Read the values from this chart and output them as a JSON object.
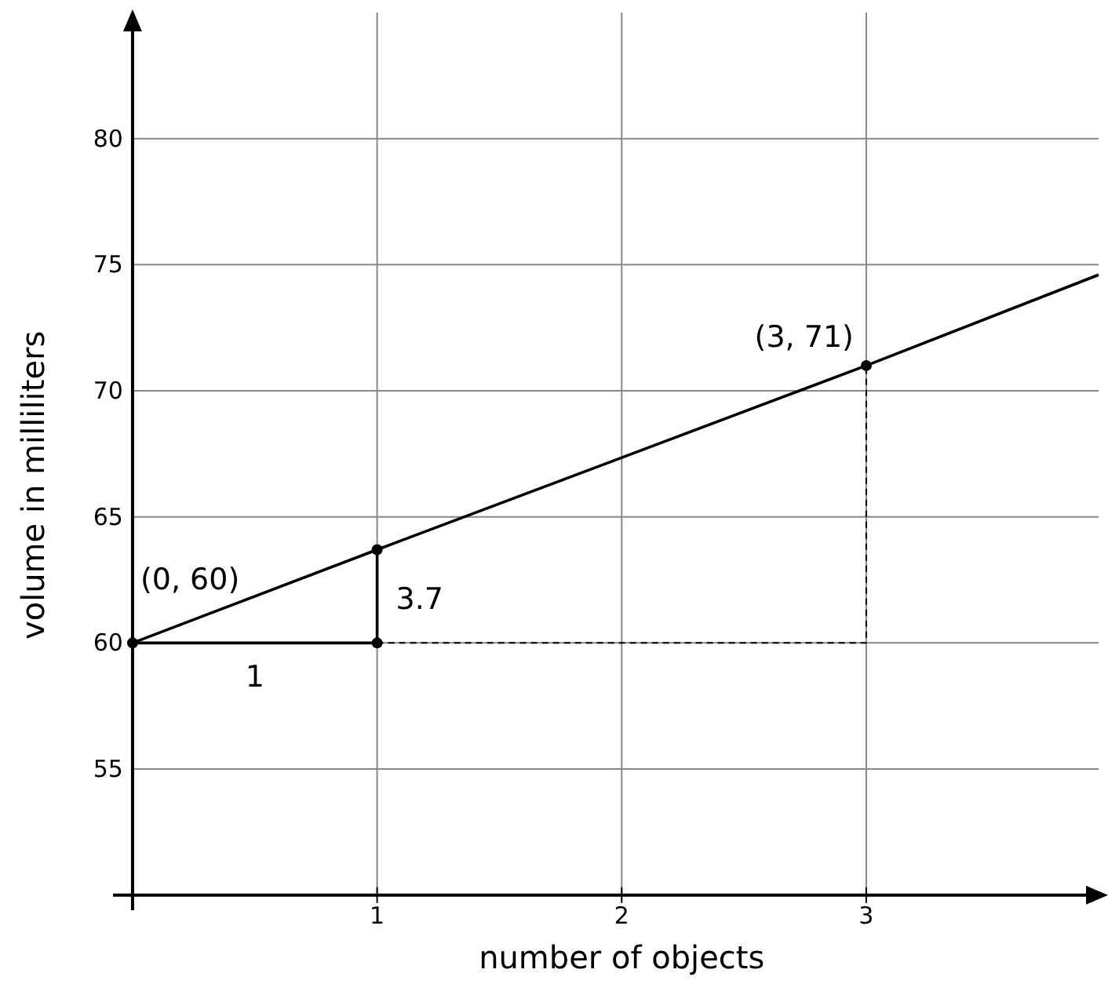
{
  "chart_data": {
    "type": "line",
    "xlabel": "number of objects",
    "ylabel": "volume in milliliters",
    "xlim": [
      -0.08,
      3.95
    ],
    "ylim": [
      49.4,
      85
    ],
    "xticks": [
      1,
      2,
      3
    ],
    "yticks": [
      55,
      60,
      65,
      70,
      75,
      80
    ],
    "grid": true,
    "series": [
      {
        "color": "#000000",
        "x": [
          0,
          1,
          3,
          3.95
        ],
        "values": [
          60,
          63.7,
          71,
          74.6
        ],
        "line_style": "solid"
      },
      {
        "color": "#000000",
        "x": [
          0,
          1,
          1
        ],
        "values": [
          60,
          60,
          63.7
        ],
        "line_style": "solid"
      },
      {
        "color": "#000000",
        "x": [
          1,
          3,
          3
        ],
        "values": [
          60,
          60,
          71
        ],
        "line_style": "dashed"
      },
      {
        "type": "scatter",
        "color": "#000000",
        "x": [
          0,
          1,
          1,
          3
        ],
        "values": [
          60,
          60,
          63.7,
          71
        ],
        "marker": "circle"
      }
    ],
    "annotations": [
      {
        "text": "(0, 60)",
        "x": 0,
        "y": 60
      },
      {
        "text": "3.7",
        "x": 1,
        "y": 61.85
      },
      {
        "text": "1",
        "x": 0.5,
        "y": 60
      },
      {
        "text": "(3, 71)",
        "x": 3,
        "y": 71
      }
    ]
  }
}
